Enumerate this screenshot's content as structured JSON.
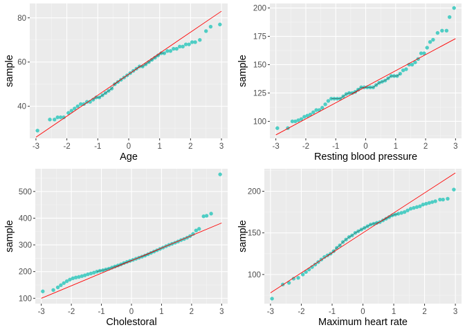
{
  "colors": {
    "panel_bg": "#ebebeb",
    "grid_major": "#ffffff",
    "grid_minor": "#f5f5f5",
    "point": "#4ecdc4",
    "ref_line": "#ff0000",
    "smooth_line": "#222222",
    "tick_text": "#4d4d4d",
    "axis_title": "#000000"
  },
  "chart_data": [
    {
      "type": "scatter",
      "xlabel": "Age",
      "ylabel": "sample",
      "xlim": [
        -3.2,
        3.2
      ],
      "ylim": [
        25.5,
        86.5
      ],
      "xticks": [
        -3,
        -2,
        -1,
        0,
        1,
        2,
        3
      ],
      "yticks": [
        40,
        60,
        80
      ],
      "reference_line": [
        [
          -3,
          26
        ],
        [
          3,
          83
        ]
      ],
      "points": [
        [
          -2.95,
          29
        ],
        [
          -2.55,
          34
        ],
        [
          -2.4,
          34
        ],
        [
          -2.3,
          35
        ],
        [
          -2.2,
          35
        ],
        [
          -2.1,
          35
        ],
        [
          -1.95,
          37
        ],
        [
          -1.85,
          38
        ],
        [
          -1.75,
          39
        ],
        [
          -1.65,
          40
        ],
        [
          -1.55,
          41
        ],
        [
          -1.45,
          41
        ],
        [
          -1.35,
          42
        ],
        [
          -1.25,
          42
        ],
        [
          -1.15,
          43
        ],
        [
          -1.05,
          44
        ],
        [
          -0.95,
          44
        ],
        [
          -0.85,
          45
        ],
        [
          -0.75,
          46
        ],
        [
          -0.65,
          47
        ],
        [
          -0.55,
          48
        ],
        [
          -0.45,
          50
        ],
        [
          -0.35,
          51
        ],
        [
          -0.25,
          52
        ],
        [
          -0.15,
          53
        ],
        [
          -0.05,
          54
        ],
        [
          0.05,
          55
        ],
        [
          0.15,
          56
        ],
        [
          0.25,
          57
        ],
        [
          0.35,
          58
        ],
        [
          0.45,
          58
        ],
        [
          0.55,
          59
        ],
        [
          0.65,
          60
        ],
        [
          0.75,
          61
        ],
        [
          0.85,
          62
        ],
        [
          0.95,
          63
        ],
        [
          1.05,
          64
        ],
        [
          1.15,
          64
        ],
        [
          1.25,
          65
        ],
        [
          1.35,
          65
        ],
        [
          1.45,
          66
        ],
        [
          1.55,
          66
        ],
        [
          1.65,
          67
        ],
        [
          1.75,
          67
        ],
        [
          1.85,
          68
        ],
        [
          1.95,
          68
        ],
        [
          2.05,
          69
        ],
        [
          2.15,
          69
        ],
        [
          2.3,
          70
        ],
        [
          2.5,
          74
        ],
        [
          2.65,
          76
        ],
        [
          2.95,
          77
        ]
      ]
    },
    {
      "type": "scatter",
      "xlabel": "Resting blood pressure",
      "ylabel": "sample",
      "xlim": [
        -3.2,
        3.2
      ],
      "ylim": [
        85,
        204
      ],
      "xticks": [
        -3,
        -2,
        -1,
        0,
        1,
        2,
        3
      ],
      "yticks": [
        100,
        125,
        150,
        175,
        200
      ],
      "reference_line": [
        [
          -3,
          88
        ],
        [
          3,
          173
        ]
      ],
      "points": [
        [
          -2.95,
          94
        ],
        [
          -2.6,
          94
        ],
        [
          -2.45,
          100
        ],
        [
          -2.35,
          100
        ],
        [
          -2.25,
          101
        ],
        [
          -2.15,
          102
        ],
        [
          -2.05,
          104
        ],
        [
          -1.95,
          105
        ],
        [
          -1.85,
          106
        ],
        [
          -1.75,
          108
        ],
        [
          -1.65,
          110
        ],
        [
          -1.55,
          110
        ],
        [
          -1.45,
          112
        ],
        [
          -1.35,
          115
        ],
        [
          -1.25,
          118
        ],
        [
          -1.15,
          120
        ],
        [
          -1.05,
          120
        ],
        [
          -0.95,
          120
        ],
        [
          -0.85,
          120
        ],
        [
          -0.75,
          122
        ],
        [
          -0.65,
          124
        ],
        [
          -0.55,
          125
        ],
        [
          -0.45,
          125
        ],
        [
          -0.35,
          126
        ],
        [
          -0.25,
          128
        ],
        [
          -0.15,
          130
        ],
        [
          -0.05,
          130
        ],
        [
          0.05,
          130
        ],
        [
          0.15,
          130
        ],
        [
          0.25,
          130
        ],
        [
          0.35,
          132
        ],
        [
          0.45,
          134
        ],
        [
          0.55,
          135
        ],
        [
          0.65,
          136
        ],
        [
          0.75,
          138
        ],
        [
          0.85,
          140
        ],
        [
          0.95,
          140
        ],
        [
          1.05,
          140
        ],
        [
          1.15,
          142
        ],
        [
          1.25,
          145
        ],
        [
          1.35,
          146
        ],
        [
          1.45,
          150
        ],
        [
          1.55,
          150
        ],
        [
          1.65,
          152
        ],
        [
          1.75,
          155
        ],
        [
          1.85,
          160
        ],
        [
          1.95,
          160
        ],
        [
          2.05,
          165
        ],
        [
          2.15,
          170
        ],
        [
          2.25,
          172
        ],
        [
          2.4,
          178
        ],
        [
          2.55,
          180
        ],
        [
          2.7,
          180
        ],
        [
          2.8,
          192
        ],
        [
          2.95,
          200
        ]
      ]
    },
    {
      "type": "scatter",
      "xlabel": "Cholestoral",
      "ylabel": "sample",
      "xlim": [
        -3.2,
        3.2
      ],
      "ylim": [
        80,
        585
      ],
      "xticks": [
        -3,
        -2,
        -1,
        0,
        1,
        2,
        3
      ],
      "yticks": [
        100,
        200,
        300,
        400,
        500
      ],
      "reference_line": [
        [
          -3,
          100
        ],
        [
          3,
          382
        ]
      ],
      "points": [
        [
          -2.95,
          126
        ],
        [
          -2.6,
          131
        ],
        [
          -2.45,
          141
        ],
        [
          -2.35,
          149
        ],
        [
          -2.25,
          157
        ],
        [
          -2.15,
          164
        ],
        [
          -2.05,
          170
        ],
        [
          -1.95,
          175
        ],
        [
          -1.85,
          178
        ],
        [
          -1.75,
          180
        ],
        [
          -1.65,
          183
        ],
        [
          -1.55,
          186
        ],
        [
          -1.45,
          190
        ],
        [
          -1.35,
          193
        ],
        [
          -1.25,
          196
        ],
        [
          -1.15,
          200
        ],
        [
          -1.05,
          203
        ],
        [
          -0.95,
          205
        ],
        [
          -0.85,
          208
        ],
        [
          -0.75,
          211
        ],
        [
          -0.65,
          215
        ],
        [
          -0.55,
          219
        ],
        [
          -0.45,
          223
        ],
        [
          -0.35,
          227
        ],
        [
          -0.25,
          232
        ],
        [
          -0.15,
          236
        ],
        [
          -0.05,
          240
        ],
        [
          0.05,
          244
        ],
        [
          0.15,
          248
        ],
        [
          0.25,
          252
        ],
        [
          0.35,
          256
        ],
        [
          0.45,
          260
        ],
        [
          0.55,
          265
        ],
        [
          0.65,
          270
        ],
        [
          0.75,
          275
        ],
        [
          0.85,
          280
        ],
        [
          0.95,
          285
        ],
        [
          1.05,
          290
        ],
        [
          1.15,
          295
        ],
        [
          1.25,
          300
        ],
        [
          1.35,
          304
        ],
        [
          1.45,
          308
        ],
        [
          1.55,
          313
        ],
        [
          1.65,
          318
        ],
        [
          1.75,
          322
        ],
        [
          1.85,
          327
        ],
        [
          1.95,
          333
        ],
        [
          2.05,
          341
        ],
        [
          2.15,
          354
        ],
        [
          2.25,
          360
        ],
        [
          2.4,
          407
        ],
        [
          2.5,
          409
        ],
        [
          2.65,
          417
        ],
        [
          2.95,
          564
        ]
      ]
    },
    {
      "type": "scatter",
      "xlabel": "Maximum heart rate",
      "ylabel": "sample",
      "xlim": [
        -3.2,
        3.2
      ],
      "ylim": [
        65,
        227
      ],
      "xticks": [
        -3,
        -2,
        -1,
        0,
        1,
        2,
        3
      ],
      "yticks": [
        100,
        150,
        200
      ],
      "reference_line": [
        [
          -3,
          78
        ],
        [
          3,
          222
        ]
      ],
      "points": [
        [
          -2.95,
          71
        ],
        [
          -2.6,
          88
        ],
        [
          -2.4,
          90
        ],
        [
          -2.25,
          95
        ],
        [
          -2.1,
          96
        ],
        [
          -1.95,
          100
        ],
        [
          -1.85,
          103
        ],
        [
          -1.75,
          106
        ],
        [
          -1.65,
          109
        ],
        [
          -1.55,
          112
        ],
        [
          -1.45,
          115
        ],
        [
          -1.35,
          118
        ],
        [
          -1.25,
          121
        ],
        [
          -1.15,
          123
        ],
        [
          -1.05,
          125
        ],
        [
          -0.95,
          128
        ],
        [
          -0.85,
          132
        ],
        [
          -0.75,
          135
        ],
        [
          -0.65,
          139
        ],
        [
          -0.55,
          142
        ],
        [
          -0.45,
          145
        ],
        [
          -0.35,
          147
        ],
        [
          -0.25,
          150
        ],
        [
          -0.15,
          152
        ],
        [
          -0.05,
          154
        ],
        [
          0.05,
          156
        ],
        [
          0.15,
          158
        ],
        [
          0.25,
          160
        ],
        [
          0.35,
          161
        ],
        [
          0.45,
          162
        ],
        [
          0.55,
          163
        ],
        [
          0.65,
          165
        ],
        [
          0.75,
          167
        ],
        [
          0.85,
          169
        ],
        [
          0.95,
          171
        ],
        [
          1.05,
          172
        ],
        [
          1.15,
          173
        ],
        [
          1.25,
          174
        ],
        [
          1.35,
          175
        ],
        [
          1.45,
          177
        ],
        [
          1.55,
          179
        ],
        [
          1.65,
          180
        ],
        [
          1.75,
          181
        ],
        [
          1.85,
          182
        ],
        [
          1.95,
          184
        ],
        [
          2.05,
          185
        ],
        [
          2.15,
          186
        ],
        [
          2.25,
          187
        ],
        [
          2.35,
          188
        ],
        [
          2.5,
          190
        ],
        [
          2.6,
          190
        ],
        [
          2.75,
          191
        ],
        [
          2.95,
          202
        ]
      ]
    }
  ]
}
